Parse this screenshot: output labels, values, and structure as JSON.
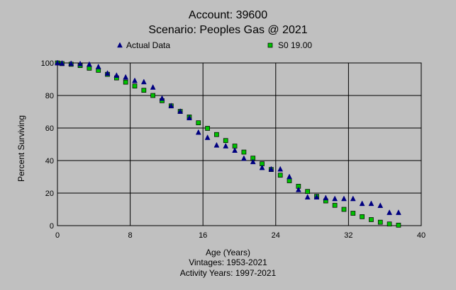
{
  "chart_data": {
    "type": "scatter",
    "title_lines": [
      "Account: 39600",
      "Scenario: Peoples Gas @ 2021"
    ],
    "xlabel": "Age (Years)",
    "ylabel": "Percent Surviving",
    "footnotes": [
      "Vintages: 1953-2021",
      "Activity Years: 1997-2021"
    ],
    "xlim": [
      0,
      40
    ],
    "ylim": [
      0,
      100
    ],
    "x_ticks": [
      0,
      8,
      16,
      24,
      32,
      40
    ],
    "y_ticks": [
      0,
      20,
      40,
      60,
      80,
      100
    ],
    "grid": true,
    "legend_position": "top",
    "series": [
      {
        "name": "Actual Data",
        "marker": "triangle",
        "color": "#000080",
        "points": [
          [
            0,
            100
          ],
          [
            0.5,
            99.8
          ],
          [
            1.5,
            99.6
          ],
          [
            2.5,
            99.4
          ],
          [
            3.5,
            99.1
          ],
          [
            4.5,
            97.6
          ],
          [
            5.5,
            93.6
          ],
          [
            6.5,
            92.3
          ],
          [
            7.5,
            91.2
          ],
          [
            8.5,
            89.1
          ],
          [
            9.5,
            88.3
          ],
          [
            10.5,
            85
          ],
          [
            11.5,
            78.2
          ],
          [
            12.5,
            73.6
          ],
          [
            13.5,
            70.2
          ],
          [
            14.5,
            66.2
          ],
          [
            15.5,
            57.3
          ],
          [
            16.5,
            54.1
          ],
          [
            17.5,
            49.4
          ],
          [
            18.5,
            48.9
          ],
          [
            19.5,
            46.2
          ],
          [
            20.5,
            41.3
          ],
          [
            21.5,
            39.2
          ],
          [
            22.5,
            35.6
          ],
          [
            23.5,
            34.7
          ],
          [
            24.5,
            34.7
          ],
          [
            25.5,
            30
          ],
          [
            26.5,
            22
          ],
          [
            27.5,
            17.5
          ],
          [
            28.5,
            17.5
          ],
          [
            29.5,
            17
          ],
          [
            30.5,
            16.5
          ],
          [
            31.5,
            16.5
          ],
          [
            32.5,
            16.5
          ],
          [
            33.5,
            13.5
          ],
          [
            34.5,
            13.5
          ],
          [
            35.5,
            12.3
          ],
          [
            36.5,
            8
          ],
          [
            37.5,
            8
          ]
        ]
      },
      {
        "name": "S0 19.00",
        "marker": "square",
        "color": "#00c000",
        "points": [
          [
            0,
            100
          ],
          [
            0.5,
            99.6
          ],
          [
            1.5,
            99.2
          ],
          [
            2.5,
            98.4
          ],
          [
            3.5,
            96.8
          ],
          [
            4.5,
            95.5
          ],
          [
            5.5,
            93
          ],
          [
            6.5,
            90.8
          ],
          [
            7.5,
            88.2
          ],
          [
            8.5,
            85.8
          ],
          [
            9.5,
            83.2
          ],
          [
            10.5,
            80
          ],
          [
            11.5,
            76.8
          ],
          [
            12.5,
            73.6
          ],
          [
            13.5,
            70.2
          ],
          [
            14.5,
            66.8
          ],
          [
            15.5,
            63.2
          ],
          [
            16.5,
            59.8
          ],
          [
            17.5,
            56
          ],
          [
            18.5,
            52.3
          ],
          [
            19.5,
            48.9
          ],
          [
            20.5,
            45.2
          ],
          [
            21.5,
            41.5
          ],
          [
            22.5,
            38
          ],
          [
            23.5,
            34.5
          ],
          [
            24.5,
            31
          ],
          [
            25.5,
            27.6
          ],
          [
            26.5,
            24.2
          ],
          [
            27.5,
            21
          ],
          [
            28.5,
            18
          ],
          [
            29.5,
            15.2
          ],
          [
            30.5,
            12.5
          ],
          [
            31.5,
            10
          ],
          [
            32.5,
            7.6
          ],
          [
            33.5,
            5.5
          ],
          [
            34.5,
            3.7
          ],
          [
            35.5,
            2.1
          ],
          [
            36.5,
            1
          ],
          [
            37.5,
            0.3
          ]
        ]
      }
    ]
  }
}
